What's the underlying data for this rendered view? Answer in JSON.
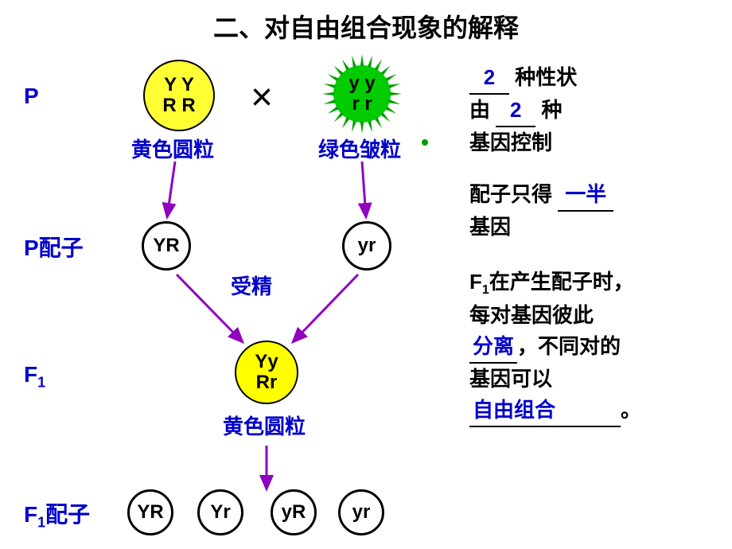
{
  "title": "二、对自由组合现象的解释",
  "labels": {
    "P": "P",
    "Pgamete": "P配子",
    "F1": "F",
    "F1sub": "1",
    "F1gamete": "F",
    "F1gamete_sub": "1",
    "F1gamete_suffix": "配子"
  },
  "parent1": {
    "line1": "Y Y",
    "line2": "R R",
    "pheno": "黄色圆粒",
    "fill": "#ffff33"
  },
  "parent2": {
    "line1": "y y",
    "line2": "r r",
    "pheno": "绿色皱粒",
    "fill": "#00a000"
  },
  "cross": "×",
  "gametes_p": {
    "left": "YR",
    "right": "yr"
  },
  "fertilize": "受精",
  "f1": {
    "line1": "Yy",
    "line2": "Rr",
    "pheno": "黄色圆粒",
    "fill": "#ffff00"
  },
  "f1_gametes": [
    "YR",
    "Yr",
    "yR",
    "yr"
  ],
  "side1": {
    "ans1": "2",
    "t1a": "种性状",
    "t2a": "由",
    "ans2": "2",
    "t2b": "种",
    "t3": "基因控制"
  },
  "side2": {
    "t1a": "配子只得",
    "ans1": "一半",
    "t2": "基因"
  },
  "side3": {
    "t1": "F₁在产生配子时，",
    "t2": "每对基因彼此",
    "ans1": "分离",
    "t3": "，不同对的",
    "t4": "基因可以",
    "ans2": "自由组合",
    "t5": "。"
  },
  "colors": {
    "arrow": "#9000c0",
    "blue": "#0000cc",
    "yellow": "#ffff33",
    "green": "#00a000"
  }
}
